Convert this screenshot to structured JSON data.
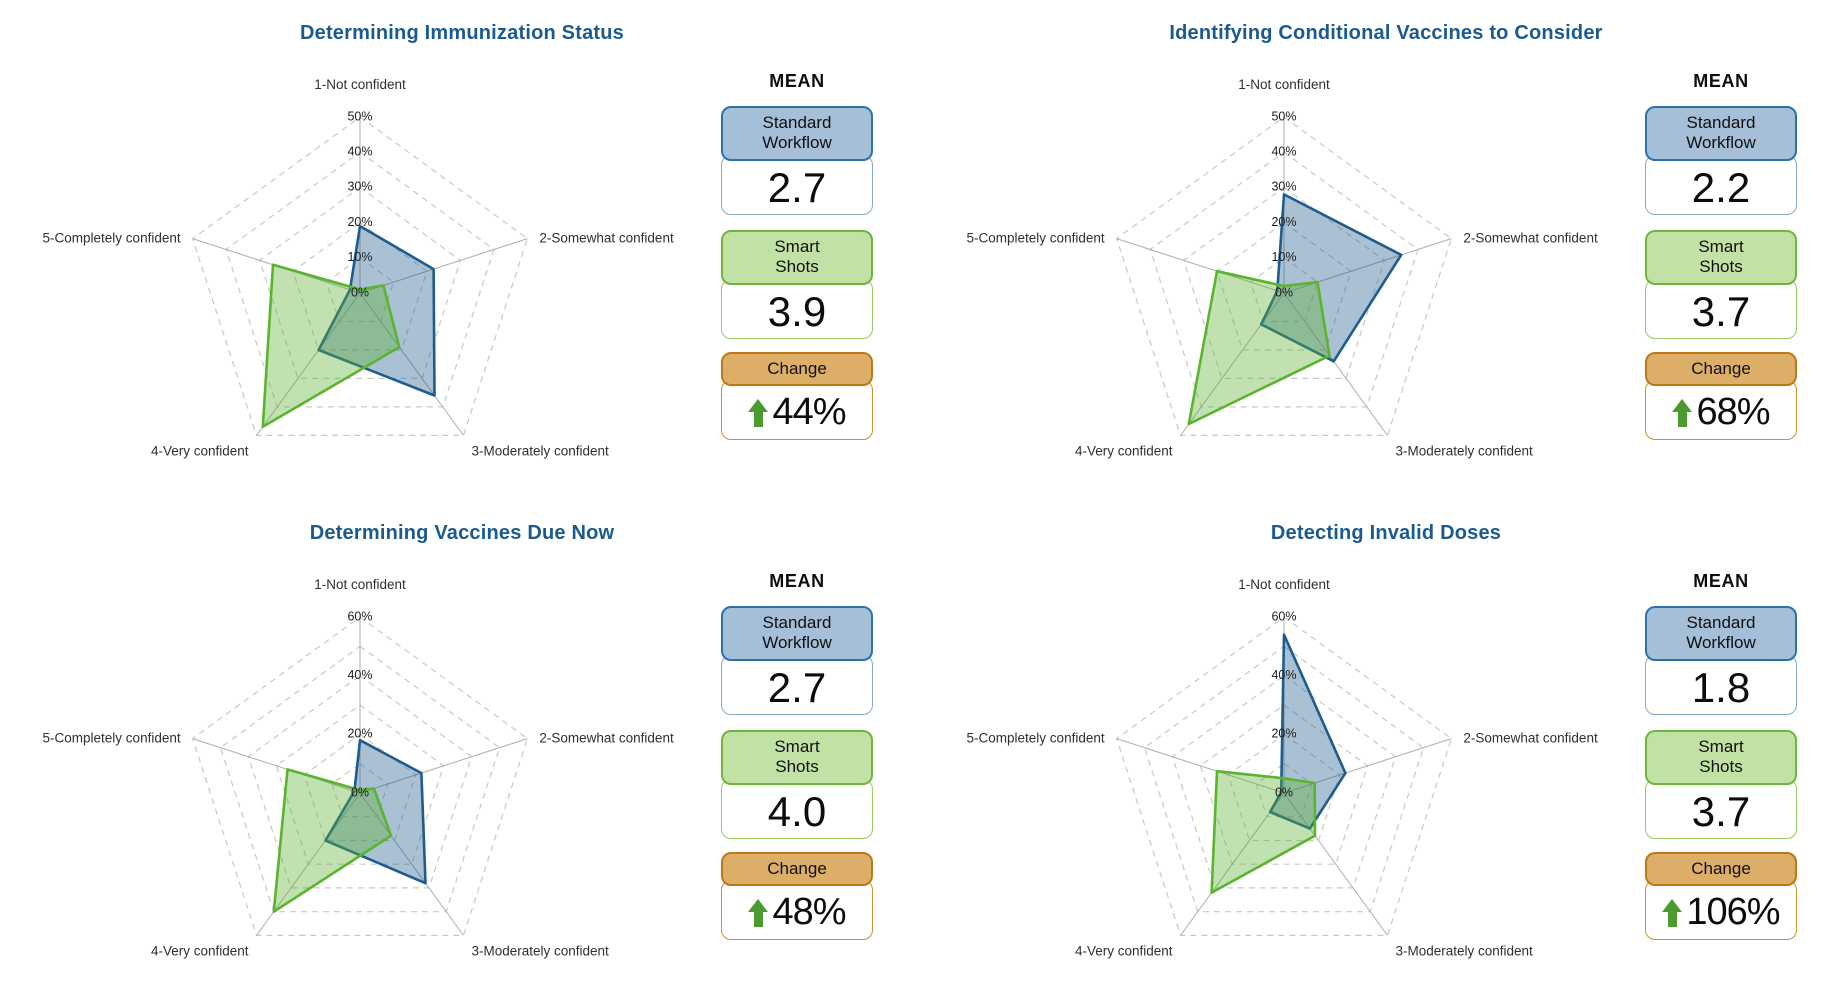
{
  "panel": {
    "heading": "MEAN",
    "standard_workflow_label": "Standard\nWorkflow",
    "smart_shots_label": "Smart\nShots",
    "change_label": "Change"
  },
  "colors": {
    "title": "#1a5a8f",
    "standard_workflow_stroke": "#1f5c8e",
    "standard_workflow_fill": "rgba(31,92,142,0.38)",
    "standard_workflow_header_bg": "#a6bfd8",
    "standard_workflow_header_border": "#2e6fad",
    "standard_workflow_value_border": "#86a9c9",
    "smart_shots_stroke": "#5ab42e",
    "smart_shots_fill": "rgba(92,178,47,0.38)",
    "smart_shots_header_bg": "#c2e1a5",
    "smart_shots_header_border": "#6db53c",
    "smart_shots_value_border": "#94cb62",
    "change_header_bg": "#dcae67",
    "change_header_border": "#bf7815",
    "change_value_border": "#c8922f",
    "up_arrow": "#4c9b31",
    "grid_ring": "#c8c8c8",
    "axis_line": "#adadad",
    "tick_text": "#1c1c1c",
    "category_text": "#2f2f2f"
  },
  "chart_data": [
    {
      "type": "radar",
      "title": "Determining Immunization Status",
      "categories": [
        "1-Not confident",
        "2-Somewhat confident",
        "3-Moderately confident",
        "4-Very confident",
        "5-Completely confident"
      ],
      "rmax": 50,
      "ring_step": 10,
      "tick_interval_pct": 10,
      "tick_labels": [
        "0%",
        "10%",
        "20%",
        "30%",
        "40%",
        "50%"
      ],
      "series": [
        {
          "name": "Standard Workflow",
          "values": [
            19,
            22,
            36,
            20,
            3
          ]
        },
        {
          "name": "Smart Shots",
          "values": [
            1,
            7,
            19,
            47,
            26
          ]
        }
      ],
      "mean": {
        "standard_workflow": "2.7",
        "smart_shots": "3.9",
        "change": "44%"
      }
    },
    {
      "type": "radar",
      "title": "Identifying Conditional Vaccines to Consider",
      "categories": [
        "1-Not confident",
        "2-Somewhat confident",
        "3-Moderately confident",
        "4-Very confident",
        "5-Completely confident"
      ],
      "rmax": 50,
      "ring_step": 10,
      "tick_interval_pct": 10,
      "tick_labels": [
        "0%",
        "10%",
        "20%",
        "30%",
        "40%",
        "50%"
      ],
      "series": [
        {
          "name": "Standard Workflow",
          "values": [
            28,
            35,
            24,
            11,
            2
          ]
        },
        {
          "name": "Smart Shots",
          "values": [
            2,
            10,
            22,
            46,
            20
          ]
        }
      ],
      "mean": {
        "standard_workflow": "2.2",
        "smart_shots": "3.7",
        "change": "68%"
      }
    },
    {
      "type": "radar",
      "title": "Determining Vaccines Due Now",
      "categories": [
        "1-Not confident",
        "2-Somewhat confident",
        "3-Moderately confident",
        "4-Very confident",
        "5-Completely confident"
      ],
      "rmax": 60,
      "ring_step": 10,
      "tick_interval_pct": 20,
      "tick_labels": [
        "0%",
        "20%",
        "40%",
        "60%"
      ],
      "series": [
        {
          "name": "Standard Workflow",
          "values": [
            18,
            22,
            38,
            20,
            2
          ]
        },
        {
          "name": "Smart Shots",
          "values": [
            1,
            5,
            18,
            50,
            26
          ]
        }
      ],
      "mean": {
        "standard_workflow": "2.7",
        "smart_shots": "4.0",
        "change": "48%"
      }
    },
    {
      "type": "radar",
      "title": "Detecting Invalid Doses",
      "categories": [
        "1-Not confident",
        "2-Somewhat confident",
        "3-Moderately confident",
        "4-Very confident",
        "5-Completely confident"
      ],
      "rmax": 60,
      "ring_step": 10,
      "tick_interval_pct": 20,
      "tick_labels": [
        "0%",
        "20%",
        "40%",
        "60%"
      ],
      "series": [
        {
          "name": "Standard Workflow",
          "values": [
            54,
            22,
            15,
            8,
            1
          ]
        },
        {
          "name": "Smart Shots",
          "values": [
            5,
            11,
            18,
            42,
            24
          ]
        }
      ],
      "mean": {
        "standard_workflow": "1.8",
        "smart_shots": "3.7",
        "change": "106%"
      }
    }
  ]
}
